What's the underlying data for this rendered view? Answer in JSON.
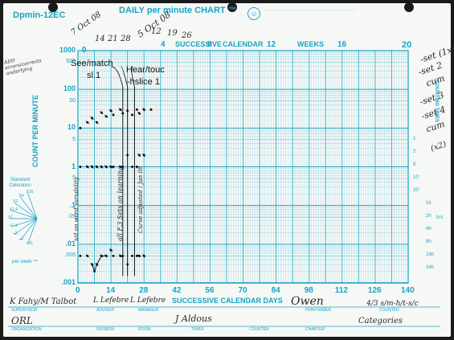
{
  "header": {
    "chart_id": "Dpmin-12EC",
    "title": "DAILY per minute CHART ™",
    "top_axis": [
      "0",
      "4",
      "SUCCESSIVE",
      "8",
      "CALENDAR",
      "12",
      "WEEKS",
      "16",
      "20"
    ]
  },
  "handwritten": {
    "top_dates": [
      "7 Oct 08",
      "14",
      "21",
      "28",
      "5 Oct 08",
      "12",
      "19",
      "26"
    ],
    "left_note": "ADD errors/corrects underlying",
    "right_notes": [
      "-set (1x)",
      "-set 2",
      "cum",
      "-set 3",
      "-set 4",
      "cum",
      "(x2)"
    ],
    "vertical_note_1": "s/d on word variability",
    "vertical_note_2": "all  F.3  Sets on learning",
    "vertical_note_3": "Curve adjusted / Jan 08"
  },
  "annotations": [
    "See/match",
    "sl.1",
    "Hear/touc",
    "-hslice 1"
  ],
  "y_axis": {
    "label": "COUNT PER MINUTE",
    "ticks": [
      "1000",
      "500",
      "100",
      "50",
      "10",
      "5",
      "1",
      ".5",
      ".1",
      ".05",
      ".01",
      ".005",
      ".001"
    ]
  },
  "right_axis": {
    "label": "COUNTING TIMES",
    "ticks": [
      "1'",
      "2'",
      "5'",
      "10'",
      "20'",
      "1h",
      "2h",
      "4h",
      "8h",
      "16h",
      "24h"
    ],
    "hrs_label": "hrs"
  },
  "x_axis": {
    "ticks": [
      "0",
      "14",
      "28",
      "42",
      "56",
      "70",
      "84",
      "98",
      "112",
      "126",
      "140"
    ],
    "label": "SUCCESSIVE CALENDAR DAYS"
  },
  "celeration_fan": {
    "title": "Standard Celeration",
    "labels": [
      "X16",
      "X4",
      "X2",
      "X1.4",
      "X1",
      "÷1.4",
      "÷2",
      "÷4",
      "÷16"
    ],
    "footer": "per week ™"
  },
  "footer": {
    "fields": [
      "SUPERVISOR",
      "ADVISER",
      "MANAGER",
      "PERFORMER",
      "COUNTED",
      "ORGANIZATION",
      "DIVISION",
      "ROOM",
      "TIMER",
      "COUNTER",
      "CHARTER"
    ],
    "entries": [
      "K Fahy/M Talbot",
      "L Lefebre",
      "L Lefebre",
      "Owen",
      "4/3 s/m-h/t-s/c",
      "ORL",
      "J Aldous",
      "Categories"
    ]
  },
  "chart_data": {
    "type": "scatter",
    "y_scale": "log",
    "xlim": [
      0,
      140
    ],
    "ylim": [
      0.001,
      1000
    ],
    "xlabel": "SUCCESSIVE CALENDAR DAYS",
    "ylabel": "COUNT PER MINUTE",
    "phase_change_days": [
      19,
      21,
      24
    ],
    "series": [
      {
        "points": [
          [
            1,
            10
          ],
          [
            4,
            14
          ],
          [
            6,
            18
          ],
          [
            8,
            14
          ],
          [
            10,
            25
          ],
          [
            12,
            20
          ],
          [
            14,
            28
          ],
          [
            15,
            22
          ],
          [
            18,
            30
          ],
          [
            19,
            24
          ],
          [
            21,
            28
          ],
          [
            23,
            22
          ],
          [
            25,
            30
          ],
          [
            26,
            24
          ],
          [
            28,
            30
          ],
          [
            31,
            30
          ]
        ]
      },
      {
        "points": [
          [
            1,
            1
          ],
          [
            4,
            1
          ],
          [
            6,
            1
          ],
          [
            8,
            1
          ],
          [
            10,
            1
          ],
          [
            12,
            1
          ],
          [
            14,
            1
          ],
          [
            15,
            1
          ],
          [
            18,
            1
          ],
          [
            19,
            1
          ],
          [
            21,
            2
          ],
          [
            23,
            1
          ],
          [
            25,
            1
          ],
          [
            26,
            2
          ],
          [
            28,
            2
          ]
        ]
      },
      {
        "points": [
          [
            1,
            0.005
          ],
          [
            4,
            0.005
          ],
          [
            6,
            0.003
          ],
          [
            7,
            0.002
          ],
          [
            8,
            0.003
          ],
          [
            10,
            0.005
          ],
          [
            12,
            0.005
          ],
          [
            14,
            0.007
          ],
          [
            15,
            0.005
          ],
          [
            18,
            0.005
          ],
          [
            19,
            0.005
          ],
          [
            21,
            0.003
          ],
          [
            23,
            0.005
          ],
          [
            25,
            0.005
          ],
          [
            26,
            0.005
          ],
          [
            28,
            0.005
          ]
        ]
      }
    ]
  }
}
